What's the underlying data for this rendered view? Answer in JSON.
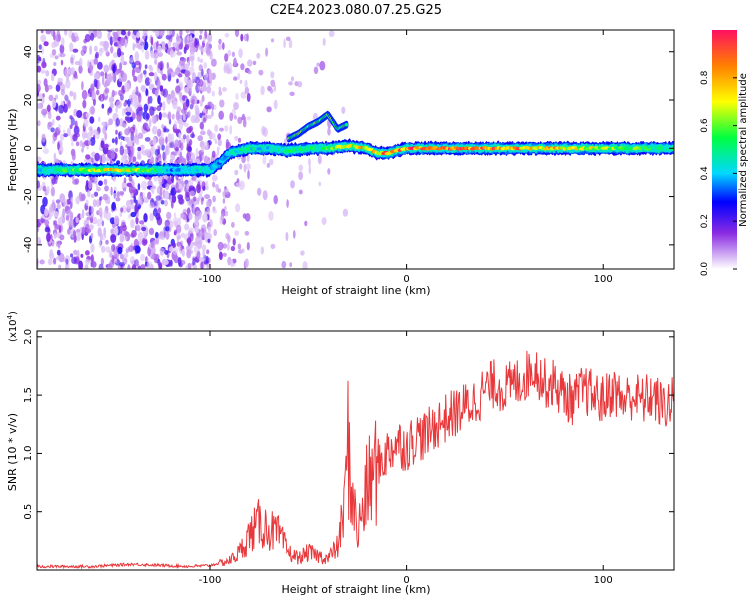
{
  "figure": {
    "title": "C2E4.2023.080.07.25.G25"
  },
  "chart_data": [
    {
      "type": "heatmap",
      "xlabel": "Height of straight line (km)",
      "ylabel": "Frequency (Hz)",
      "xlim": [
        -188,
        136
      ],
      "ylim": [
        -50,
        49
      ],
      "xticks": [
        -100,
        0,
        100
      ],
      "yticks": [
        -40,
        -20,
        0,
        20,
        40
      ],
      "colorbar": {
        "label": "Normalized spectral amplitude",
        "range": [
          0,
          1
        ],
        "ticks": [
          "0.0",
          "0.2",
          "0.4",
          "0.6",
          "0.8"
        ],
        "tick_values": [
          0.0,
          0.2,
          0.4,
          0.6,
          0.8
        ]
      },
      "ridge": {
        "x": [
          -188,
          -160,
          -145,
          -120,
          -105,
          -100,
          -95,
          -90,
          -80,
          -70,
          -60,
          -50,
          -40,
          -30,
          -20,
          -15,
          -10,
          0,
          10,
          50,
          100,
          136
        ],
        "y": [
          -9,
          -9,
          -9,
          -9,
          -9,
          -9,
          -6,
          -2,
          0,
          0,
          -1,
          0,
          0,
          1,
          0,
          -2,
          -2,
          0,
          0,
          0,
          0,
          0
        ],
        "amplitude": [
          0.45,
          0.65,
          0.8,
          0.4,
          0.45,
          0.45,
          0.35,
          0.5,
          0.5,
          0.45,
          0.5,
          0.55,
          0.6,
          0.7,
          0.8,
          0.85,
          0.9,
          0.9,
          0.95,
          0.9,
          0.7,
          0.5
        ]
      },
      "secondary_ridge": {
        "x": [
          -60,
          -55,
          -50,
          -45,
          -40,
          -35,
          -30
        ],
        "y": [
          4,
          6,
          9,
          11,
          14,
          8,
          10
        ]
      }
    },
    {
      "type": "line",
      "xlabel": "Height of straight line (km)",
      "ylabel": "SNR (10 * v/v)",
      "y_multiplier": "(x10",
      "y_exponent": "4",
      "y_multiplier_close": ")",
      "xlim": [
        -188,
        136
      ],
      "ylim": [
        0,
        2.05
      ],
      "xticks": [
        -100,
        0,
        100
      ],
      "yticks": [
        0.5,
        1.0,
        1.5,
        2.0
      ],
      "ytick_labels": [
        "0.5",
        "1.0",
        "1.5",
        "2.0"
      ],
      "series": [
        {
          "color": "#e8383b",
          "x": [
            -188,
            -160,
            -140,
            -110,
            -100,
            -90,
            -85,
            -80,
            -75,
            -70,
            -65,
            -60,
            -55,
            -50,
            -45,
            -40,
            -35,
            -32,
            -30,
            -28,
            -25,
            -20,
            -15,
            -10,
            -5,
            0,
            5,
            10,
            15,
            20,
            25,
            30,
            35,
            40,
            45,
            50,
            55,
            60,
            65,
            70,
            75,
            80,
            85,
            90,
            95,
            100,
            105,
            110,
            115,
            120,
            125,
            130,
            136
          ],
          "y": [
            0.03,
            0.03,
            0.05,
            0.03,
            0.04,
            0.08,
            0.15,
            0.3,
            0.4,
            0.35,
            0.3,
            0.15,
            0.1,
            0.15,
            0.12,
            0.1,
            0.2,
            0.5,
            1.1,
            0.7,
            0.3,
            0.7,
            0.9,
            1.0,
            1.1,
            1.05,
            1.15,
            1.15,
            1.25,
            1.3,
            1.35,
            1.4,
            1.45,
            1.55,
            1.6,
            1.55,
            1.6,
            1.65,
            1.75,
            1.6,
            1.6,
            1.5,
            1.45,
            1.55,
            1.5,
            1.45,
            1.55,
            1.45,
            1.5,
            1.45,
            1.5,
            1.4,
            1.45
          ]
        }
      ]
    }
  ]
}
